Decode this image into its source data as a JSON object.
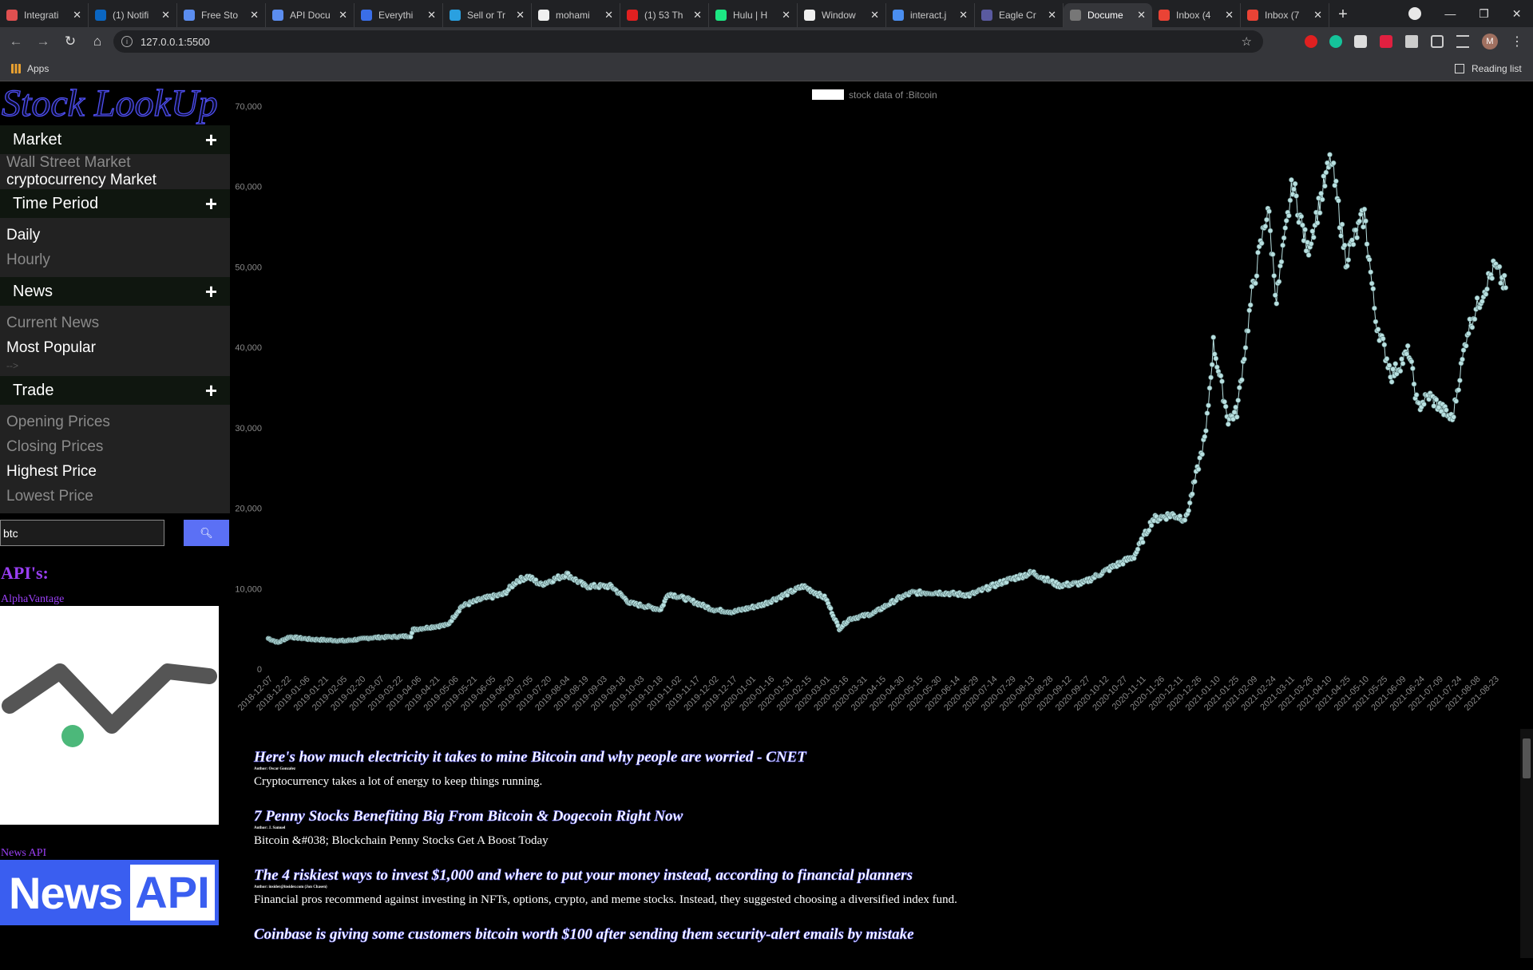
{
  "browser": {
    "tabs": [
      {
        "title": "Integrati",
        "color": "#e05050"
      },
      {
        "title": "(1) Notifi",
        "color": "#0a66c2"
      },
      {
        "title": "Free Sto",
        "color": "#5b8def"
      },
      {
        "title": "API Docu",
        "color": "#5b8def"
      },
      {
        "title": "Everythi",
        "color": "#3a6ee8"
      },
      {
        "title": "Sell or Tr",
        "color": "#2aa0e0"
      },
      {
        "title": "mohami",
        "color": "#f0f0f0"
      },
      {
        "title": "(1) 53 Th",
        "color": "#e02020"
      },
      {
        "title": "Hulu | H",
        "color": "#1ce783"
      },
      {
        "title": "Window",
        "color": "#f0f0f0"
      },
      {
        "title": "interact.j",
        "color": "#4a8ef0"
      },
      {
        "title": "Eagle Cr",
        "color": "#5a5aa0"
      },
      {
        "title": "Docume",
        "color": "#777777",
        "active": true
      },
      {
        "title": "Inbox (4",
        "color": "#ea4335"
      },
      {
        "title": "Inbox (7",
        "color": "#ea4335"
      }
    ],
    "url": "127.0.0.1:5500",
    "bookmarks_apps": "Apps",
    "reading_list": "Reading list",
    "profile_initial": "M"
  },
  "sidebar": {
    "logo": "Stock LookUp",
    "sections": [
      {
        "title": "Market",
        "options": [
          {
            "label": "Wall Street Market",
            "style": "dim"
          },
          {
            "label": "cryptocurrency Market",
            "style": "bright"
          }
        ]
      },
      {
        "title": "Time Period",
        "options": [
          {
            "label": "Daily",
            "style": "bright"
          },
          {
            "label": "Hourly",
            "style": "dim"
          }
        ]
      },
      {
        "title": "News",
        "options": [
          {
            "label": "Current News",
            "style": "dim"
          },
          {
            "label": "Most Popular",
            "style": "bright"
          }
        ],
        "comment": "-->"
      },
      {
        "title": "Trade",
        "options": [
          {
            "label": "Opening Prices",
            "style": "dim"
          },
          {
            "label": "Closing Prices",
            "style": "dim"
          },
          {
            "label": "Highest Price",
            "style": "bright"
          },
          {
            "label": "Lowest Price",
            "style": "dim"
          }
        ]
      }
    ],
    "search": {
      "value": "btc"
    },
    "apis_title": "API's:",
    "api_links": [
      "AlphaVantage",
      "News API"
    ],
    "news_api_logo_text": [
      "News",
      "API"
    ]
  },
  "chart_data": {
    "type": "line",
    "legend": "stock data of :Bitcoin",
    "legend_position": "top-center",
    "ylim": [
      0,
      70000
    ],
    "yticks": [
      0,
      10000,
      20000,
      30000,
      40000,
      50000,
      60000,
      70000
    ],
    "ytick_labels": [
      "0",
      "10,000",
      "20,000",
      "30,000",
      "40,000",
      "50,000",
      "60,000",
      "70,000"
    ],
    "xlim": [
      "2018-12-07",
      "2021-09-05"
    ],
    "xtick_labels": [
      "2018-12-07",
      "2018-12-22",
      "2019-01-06",
      "2019-01-21",
      "2019-02-05",
      "2019-02-20",
      "2019-03-07",
      "2019-03-22",
      "2019-04-06",
      "2019-04-21",
      "2019-05-06",
      "2019-05-21",
      "2019-06-05",
      "2019-06-20",
      "2019-07-05",
      "2019-07-20",
      "2019-08-04",
      "2019-08-19",
      "2019-09-03",
      "2019-09-18",
      "2019-10-03",
      "2019-10-18",
      "2019-11-02",
      "2019-11-17",
      "2019-12-02",
      "2019-12-17",
      "2020-01-01",
      "2020-01-16",
      "2020-01-31",
      "2020-02-15",
      "2020-03-01",
      "2020-03-16",
      "2020-03-31",
      "2020-04-15",
      "2020-04-30",
      "2020-05-15",
      "2020-05-30",
      "2020-06-14",
      "2020-06-29",
      "2020-07-14",
      "2020-07-29",
      "2020-08-13",
      "2020-08-28",
      "2020-09-12",
      "2020-09-27",
      "2020-10-12",
      "2020-10-27",
      "2020-11-11",
      "2020-11-26",
      "2020-12-11",
      "2020-12-26",
      "2021-01-10",
      "2021-01-25",
      "2021-02-09",
      "2021-02-24",
      "2021-03-11",
      "2021-03-26",
      "2021-04-10",
      "2021-04-25",
      "2021-05-10",
      "2021-05-25",
      "2021-06-09",
      "2021-06-24",
      "2021-07-09",
      "2021-07-24",
      "2021-08-08",
      "2021-08-23"
    ],
    "line_color": "#b8e0e0",
    "point_color": "#b8e0e0",
    "series_keypoints": {
      "x": [
        "2018-12-07",
        "2018-12-15",
        "2018-12-24",
        "2019-01-10",
        "2019-02-07",
        "2019-03-01",
        "2019-04-01",
        "2019-04-03",
        "2019-05-01",
        "2019-05-12",
        "2019-05-28",
        "2019-06-15",
        "2019-06-26",
        "2019-07-05",
        "2019-07-15",
        "2019-08-05",
        "2019-08-20",
        "2019-09-10",
        "2019-09-25",
        "2019-10-20",
        "2019-10-26",
        "2019-11-10",
        "2019-12-01",
        "2019-12-17",
        "2020-01-10",
        "2020-02-12",
        "2020-03-01",
        "2020-03-12",
        "2020-03-20",
        "2020-04-08",
        "2020-04-29",
        "2020-05-10",
        "2020-06-01",
        "2020-06-25",
        "2020-07-25",
        "2020-08-15",
        "2020-09-05",
        "2020-09-25",
        "2020-10-20",
        "2020-11-05",
        "2020-11-20",
        "2020-12-05",
        "2020-12-17",
        "2021-01-02",
        "2021-01-08",
        "2021-01-20",
        "2021-01-27",
        "2021-02-08",
        "2021-02-21",
        "2021-02-28",
        "2021-03-13",
        "2021-03-25",
        "2021-04-13",
        "2021-04-25",
        "2021-05-10",
        "2021-05-19",
        "2021-06-01",
        "2021-06-15",
        "2021-06-22",
        "2021-07-01",
        "2021-07-20",
        "2021-08-01",
        "2021-08-14",
        "2021-08-23",
        "2021-09-01"
      ],
      "y": [
        3800,
        3300,
        4000,
        3700,
        3500,
        3900,
        4100,
        4900,
        5500,
        7800,
        8700,
        9300,
        11000,
        11500,
        10500,
        11800,
        10300,
        10300,
        8200,
        7400,
        9400,
        8700,
        7400,
        7100,
        8000,
        10300,
        8800,
        5000,
        6200,
        6900,
        8800,
        9500,
        9500,
        9200,
        11000,
        12000,
        10400,
        10700,
        12800,
        14000,
        18600,
        19200,
        18700,
        29300,
        40500,
        31000,
        32000,
        46500,
        57500,
        46000,
        60500,
        52000,
        63500,
        51000,
        56500,
        43500,
        36500,
        39500,
        32500,
        34000,
        31000,
        42000,
        47000,
        50000,
        47500
      ]
    }
  },
  "news": [
    {
      "title": "Here's how much electricity it takes to mine Bitcoin and why people are worried - CNET",
      "author": "Author: Oscar Gonzalez",
      "desc": "Cryptocurrency takes a lot of energy to keep things running."
    },
    {
      "title": "7 Penny Stocks Benefiting Big From Bitcoin & Dogecoin Right Now",
      "author": "Author: J. Samuel",
      "desc": "Bitcoin &#038; Blockchain Penny Stocks Get A Boost Today"
    },
    {
      "title": "The 4 riskiest ways to invest $1,000 and where to put your money instead, according to financial planners",
      "author": "Author: insider@insider.com (Jon Chasen)",
      "desc": "Financial pros recommend against investing in NFTs, options, crypto, and meme stocks. Instead, they suggested choosing a diversified index fund."
    },
    {
      "title": "Coinbase is giving some customers bitcoin worth $100 after sending them security-alert emails by mistake",
      "author": "",
      "desc": ""
    }
  ]
}
